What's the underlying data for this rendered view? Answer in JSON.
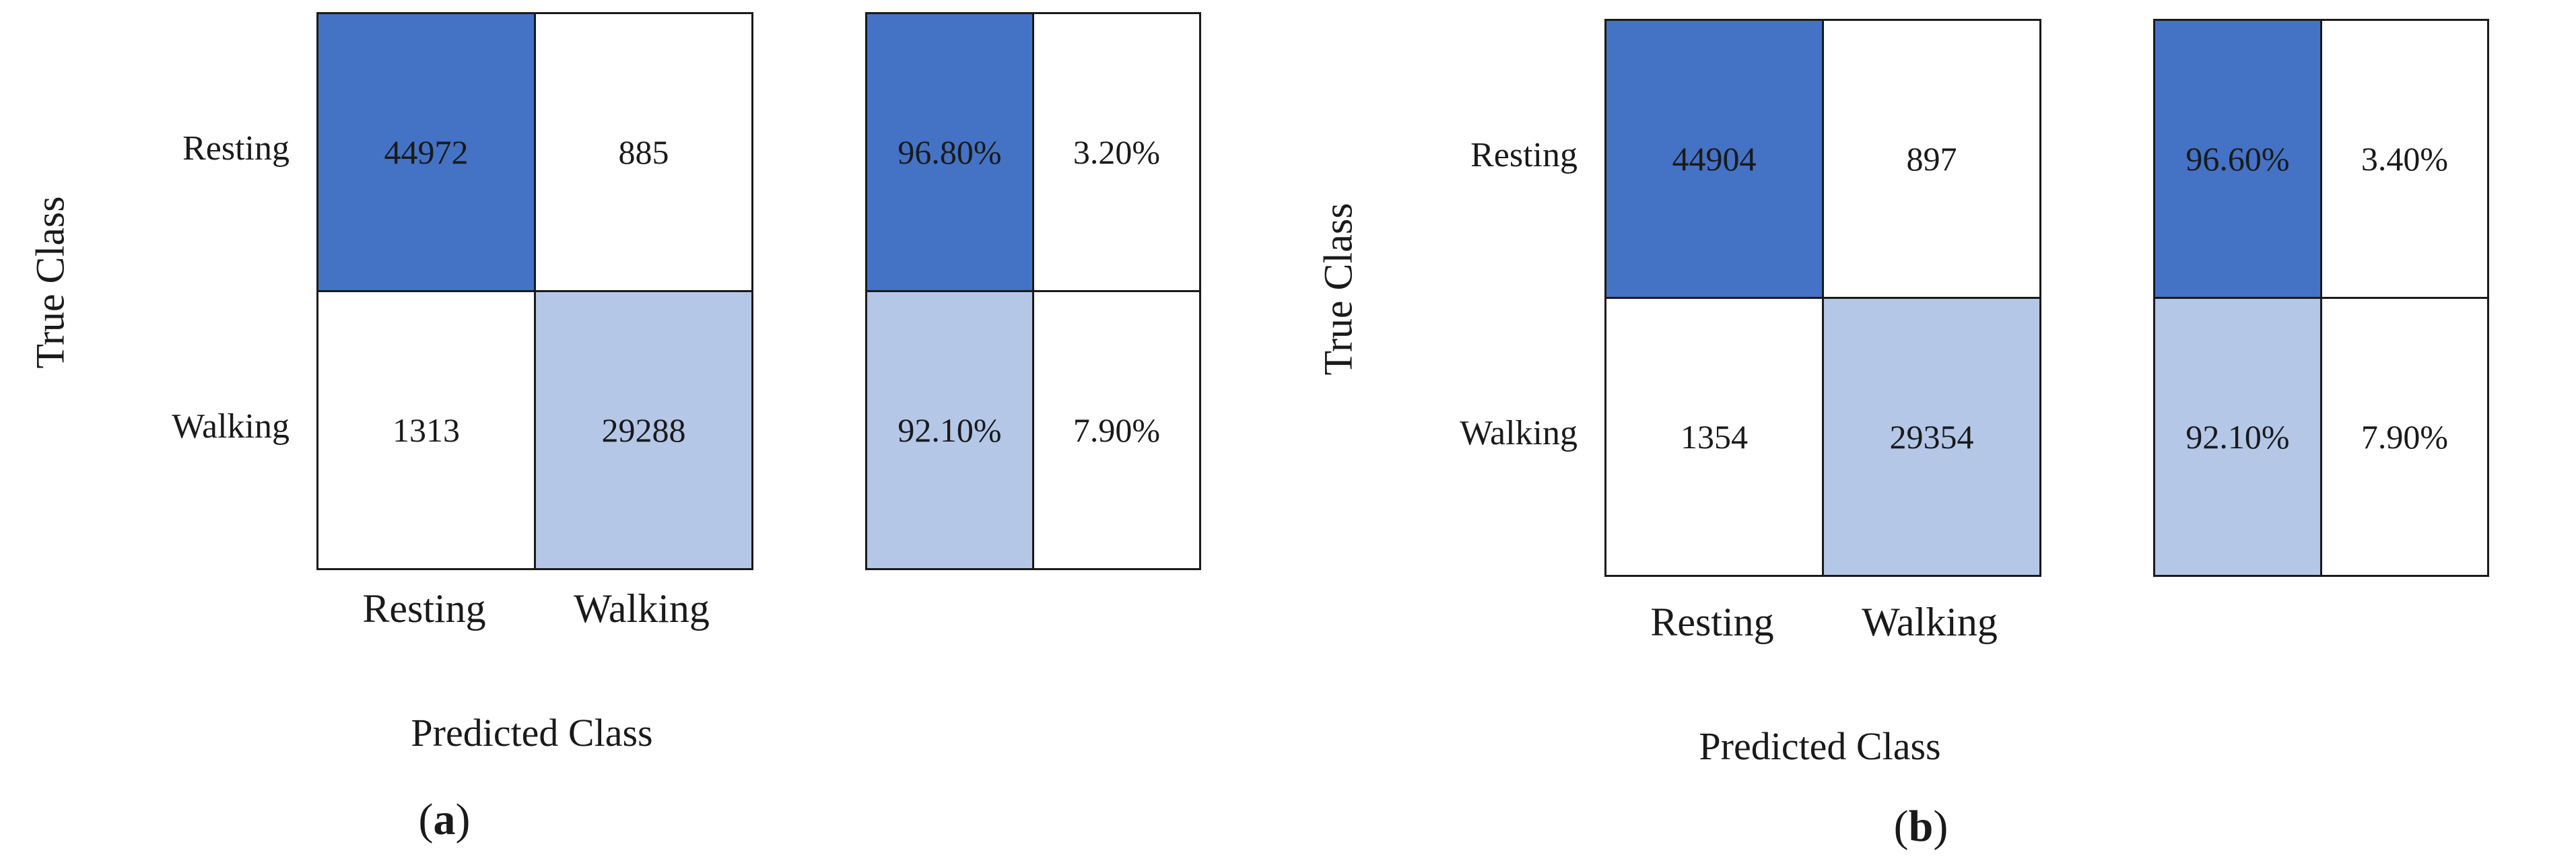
{
  "chart_data": [
    {
      "type": "heatmap",
      "panel_label": "a",
      "ylabel": "True Class",
      "xlabel": "Predicted Class",
      "row_labels": [
        "Resting",
        "Walking"
      ],
      "col_labels": [
        "Resting",
        "Walking"
      ],
      "counts": [
        [
          "44972",
          "885"
        ],
        [
          "1313",
          "29288"
        ]
      ],
      "percentages": [
        [
          "96.80%",
          "3.20%"
        ],
        [
          "92.10%",
          "7.90%"
        ]
      ]
    },
    {
      "type": "heatmap",
      "panel_label": "b",
      "ylabel": "True Class",
      "xlabel": "Predicted Class",
      "row_labels": [
        "Resting",
        "Walking"
      ],
      "col_labels": [
        "Resting",
        "Walking"
      ],
      "counts": [
        [
          "44904",
          "897"
        ],
        [
          "1354",
          "29354"
        ]
      ],
      "percentages": [
        [
          "96.60%",
          "3.40%"
        ],
        [
          "92.10%",
          "7.90%"
        ]
      ]
    }
  ],
  "colors": {
    "strong": "#4472c4",
    "light": "#b4c7e7",
    "none": "#ffffff"
  },
  "cell_shading": {
    "counts": [
      [
        "strong",
        "none"
      ],
      [
        "none",
        "light"
      ]
    ],
    "percentages": [
      [
        "strong",
        "none"
      ],
      [
        "light",
        "none"
      ]
    ]
  }
}
